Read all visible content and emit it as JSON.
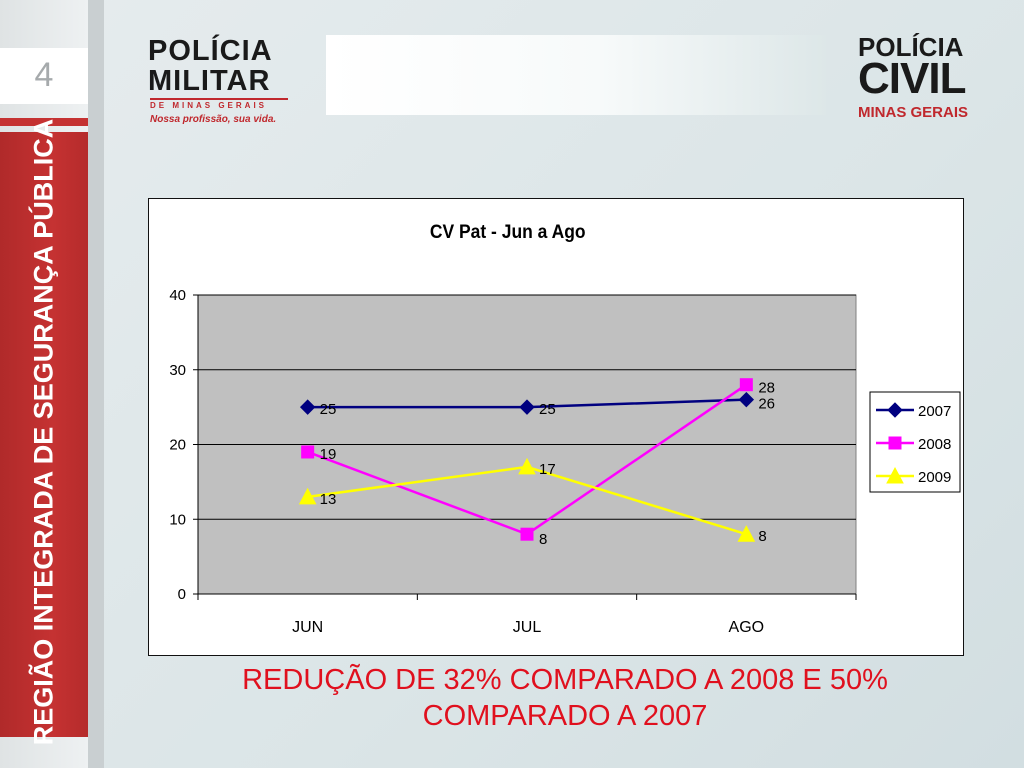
{
  "slide": {
    "page_number": "4",
    "sidebar_text": "REGIÃO INTEGRADA DE SEGURANÇA PÚBLICA",
    "caption_line1": "REDUÇÃO DE 32% COMPARADO A 2008 E 50%",
    "caption_line2": "COMPARADO A 2007"
  },
  "logos": {
    "pm_line1": "POLÍCIA",
    "pm_line2": "MILITAR",
    "pm_line3": "DE MINAS GERAIS",
    "pm_tagline": "Nossa profissão, sua vida.",
    "pc_line1": "POLÍCIA",
    "pc_line2": "CIVIL",
    "pc_line3": "MINAS GERAIS"
  },
  "chart_data": {
    "type": "line",
    "title": "CV Pat - Jun a Ago",
    "categories": [
      "JUN",
      "JUL",
      "AGO"
    ],
    "ylim": [
      0,
      40
    ],
    "yticks": [
      0,
      10,
      20,
      30,
      40
    ],
    "grid": true,
    "legend_position": "right",
    "series": [
      {
        "name": "2007",
        "values": [
          25,
          25,
          26
        ],
        "color": "#000080",
        "marker": "diamond"
      },
      {
        "name": "2008",
        "values": [
          19,
          8,
          28
        ],
        "color": "#ff00ff",
        "marker": "square"
      },
      {
        "name": "2009",
        "values": [
          13,
          17,
          8
        ],
        "color": "#ffff00",
        "marker": "triangle"
      }
    ]
  }
}
